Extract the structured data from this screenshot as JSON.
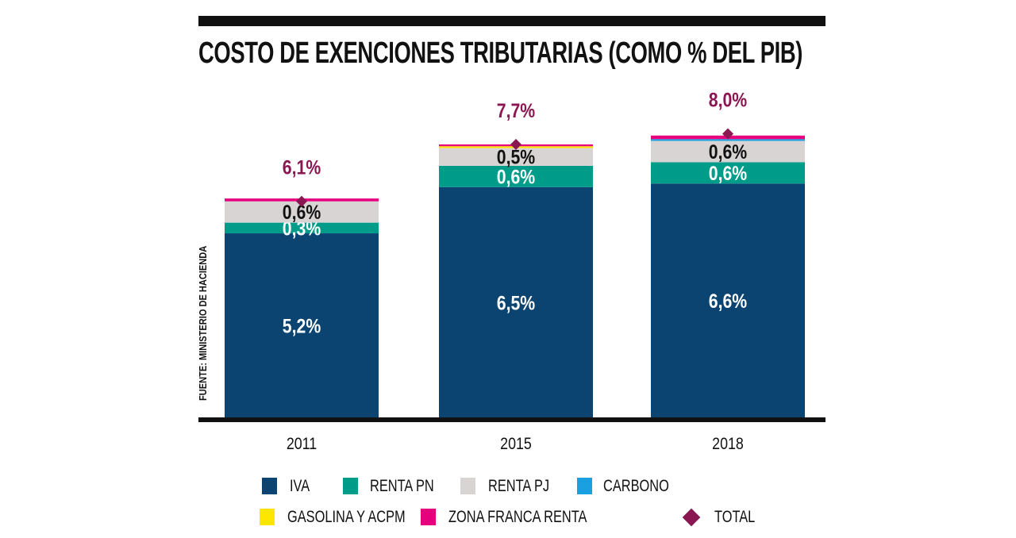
{
  "chart_data": {
    "type": "bar",
    "stacked": true,
    "title": "COSTO DE EXENCIONES TRIBUTARIAS (COMO % DEL PIB)",
    "source": "FUENTE: MINISTERIO DE HACIENDA",
    "categories": [
      "2011",
      "2015",
      "2018"
    ],
    "series": [
      {
        "name": "IVA",
        "color": "#0b4471",
        "values": [
          5.2,
          6.5,
          6.6
        ],
        "labels": [
          "5,2%",
          "6,5%",
          "6,6%"
        ],
        "label_color": "#ffffff"
      },
      {
        "name": "RENTA PN",
        "color": "#009c8a",
        "values": [
          0.3,
          0.6,
          0.6
        ],
        "labels": [
          "0,3%",
          "0,6%",
          "0,6%"
        ],
        "label_color": "#ffffff"
      },
      {
        "name": "RENTA PJ",
        "color": "#d9d4d4",
        "values": [
          0.6,
          0.5,
          0.6
        ],
        "labels": [
          "0,6%",
          "0,5%",
          "0,6%"
        ],
        "label_color": "#111111"
      },
      {
        "name": "CARBONO",
        "color": "#1a9fe0",
        "values": [
          0,
          0,
          0.05
        ]
      },
      {
        "name": "GASOLINA Y ACPM",
        "color": "#ffe600",
        "values": [
          0,
          0.05,
          0
        ]
      },
      {
        "name": "ZONA FRANCA RENTA",
        "color": "#e6007e",
        "values": [
          0.08,
          0.05,
          0.1
        ]
      }
    ],
    "total": {
      "name": "TOTAL",
      "color": "#8a1652",
      "values": [
        6.1,
        7.7,
        8.0
      ],
      "labels": [
        "6,1%",
        "7,7%",
        "8,0%"
      ]
    },
    "ylim": [
      0,
      8.5
    ],
    "grid": false,
    "legend_position": "bottom"
  }
}
